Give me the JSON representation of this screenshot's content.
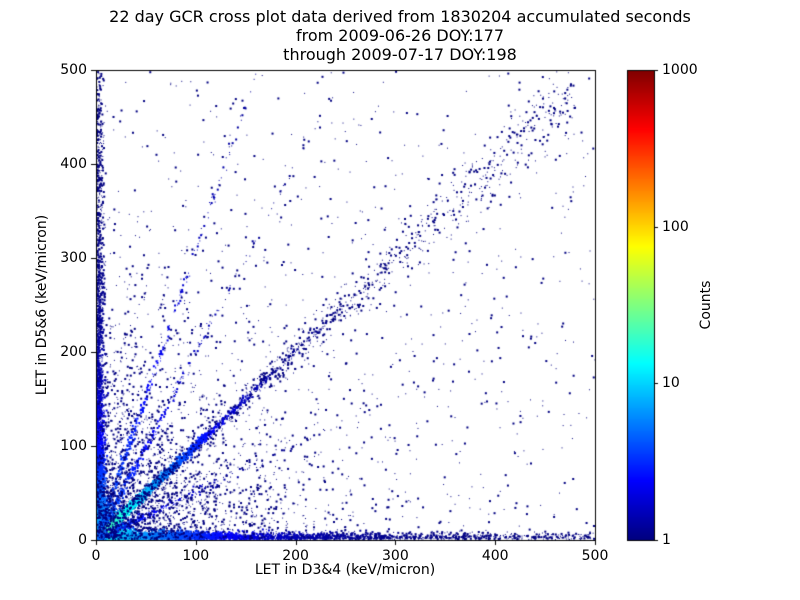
{
  "title": {
    "line1": "22 day GCR cross plot data derived from 1830204 accumulated seconds",
    "line2": "from 2009-06-26 DOY:177",
    "line3": "through 2009-07-17 DOY:198"
  },
  "chart_data": {
    "type": "heatmap",
    "title": "22 day GCR cross plot data derived from 1830204 accumulated seconds from 2009-06-26 DOY:177 through 2009-07-17 DOY:198",
    "xlabel": "LET in D3&4 (keV/micron)",
    "ylabel": "LET in D5&6 (keV/micron)",
    "xlim": [
      0,
      500
    ],
    "ylim": [
      0,
      500
    ],
    "x_ticks": [
      0,
      100,
      200,
      300,
      400,
      500
    ],
    "y_ticks": [
      0,
      100,
      200,
      300,
      400,
      500
    ],
    "grid": false,
    "colorbar": {
      "label": "Counts",
      "scale": "log",
      "range": [
        1,
        1000
      ],
      "ticks": [
        1,
        10,
        100,
        1000
      ],
      "colormap": "jet"
    },
    "seed": 20090626,
    "density_features": [
      {
        "name": "origin-hotspot",
        "desc": "Very dense core at the origin; counts approach ~1000 (dark red) within a few keV/micron, falling through orange/green to cyan by ~25",
        "type": "blob",
        "n": 4500,
        "scale": 8,
        "peak_count": 900,
        "falloff": 7
      },
      {
        "name": "x-axis-band",
        "desc": "Dense band of events hugging the D3&4 axis (y ~ 0) across the full 0-500 range, cyan/green near the origin fading to dark blue",
        "type": "band_x",
        "n": 3200,
        "len_scale": 180,
        "max": 500,
        "width": 3.5,
        "peak_count": 12,
        "falloff": 60
      },
      {
        "name": "y-axis-band",
        "desc": "Dense band of events hugging the D5&6 axis (x ~ 0) up to y ~ 500, thinning with height",
        "type": "band_y",
        "n": 2900,
        "len_scale": 180,
        "max": 500,
        "width": 3.5,
        "peak_count": 8,
        "falloff": 60
      },
      {
        "name": "main-diagonal-core",
        "desc": "Bright cyan y = x correlation line near the origin (coincident LET in both detector pairs)",
        "type": "ray",
        "slope": 1,
        "n": 2400,
        "len_scale": 55,
        "width": 2.2,
        "peak_count": 28,
        "falloff": 38
      },
      {
        "name": "main-diagonal-tail",
        "desc": "Sparse single-count y ~ x correlation band continuing to ~480, broadening with LET",
        "type": "ray_uniform",
        "slope": 1,
        "n": 850,
        "min": 35,
        "max": 480,
        "width_base": 2.5,
        "width_grow": 0.04,
        "count": 1
      },
      {
        "name": "steep-ray-a",
        "desc": "Faint ray fanning up from the origin, slope ~ 3",
        "type": "ray",
        "slope": 3.1,
        "n": 320,
        "len_scale": 55,
        "width": 2.5,
        "peak_count": 4,
        "falloff": 50
      },
      {
        "name": "steep-ray-b",
        "desc": "Faint ray fanning up from the origin, slope ~ 2",
        "type": "ray",
        "slope": 2.0,
        "n": 300,
        "len_scale": 55,
        "width": 2.5,
        "peak_count": 4,
        "falloff": 50
      },
      {
        "name": "shallow-ray",
        "desc": "Faint ray below the diagonal, slope ~ 0.5",
        "type": "ray",
        "slope": 0.5,
        "n": 300,
        "len_scale": 60,
        "width": 2.5,
        "peak_count": 4,
        "falloff": 50
      },
      {
        "name": "lower-left-haze",
        "desc": "Diffuse single-count background concentrated toward low LET in both axes",
        "type": "scatter_exp",
        "n": 2800,
        "scale": 75,
        "count": 1
      },
      {
        "name": "uniform-background",
        "desc": "Isolated single-count events scattered over the whole plane",
        "type": "scatter_uniform",
        "n": 700,
        "count": 1
      }
    ]
  }
}
